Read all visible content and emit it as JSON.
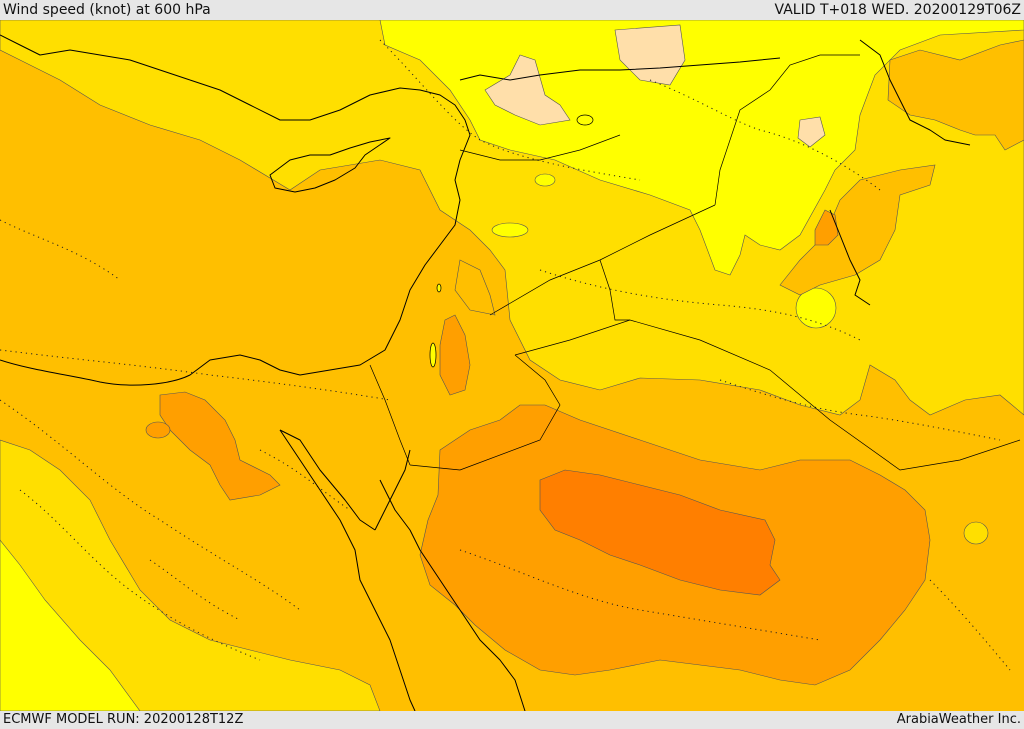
{
  "header": {
    "title": "Wind speed (knot) at 600 hPa",
    "valid": "VALID T+018 WED. 20200129T06Z"
  },
  "footer": {
    "model_run": "ECMWF MODEL RUN: 20200128T12Z",
    "credit": "ArabiaWeather Inc."
  },
  "colors": {
    "level_lightest": "#ffff00",
    "level_light": "#ffdf00",
    "level_mid": "#ffbf00",
    "level_high": "#ff9f00",
    "level_highest": "#ff7f00",
    "level_calm": "#ffdfaa",
    "coastline": "#000000",
    "contour_line": "#555555"
  }
}
